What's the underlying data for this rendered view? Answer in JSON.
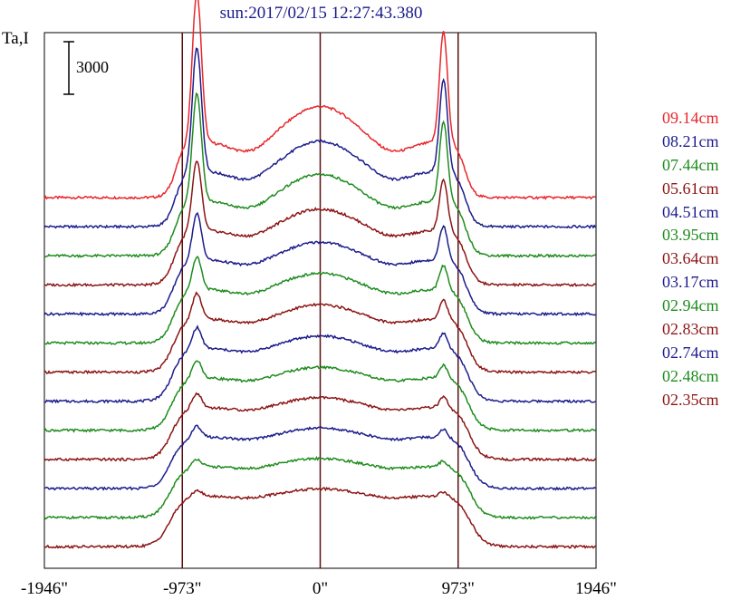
{
  "chart_data": {
    "type": "line",
    "title": "sun:2017/02/15 12:27:43.380",
    "ylabel": "Ta,I",
    "scale_bar_label": "3000",
    "x_ticks": [
      {
        "value": -1946,
        "label": "-1946\""
      },
      {
        "value": -973,
        "label": "-973\""
      },
      {
        "value": 0,
        "label": "0\""
      },
      {
        "value": 973,
        "label": "973\""
      },
      {
        "value": 1946,
        "label": "1946\""
      }
    ],
    "xlim": [
      -1946,
      1946
    ],
    "vertical_markers": [
      -973,
      0,
      973
    ],
    "series": [
      {
        "name": "09.14cm",
        "color": "#e8262b",
        "limb_peak": 9000,
        "center_bump": 2000
      },
      {
        "name": "08.21cm",
        "color": "#1c1c8c",
        "limb_peak": 7500,
        "center_bump": 1700
      },
      {
        "name": "07.44cm",
        "color": "#1e8c1e",
        "limb_peak": 6500,
        "center_bump": 1500
      },
      {
        "name": "05.61cm",
        "color": "#8c1414",
        "limb_peak": 4200,
        "center_bump": 1200
      },
      {
        "name": "04.51cm",
        "color": "#1c1c8c",
        "limb_peak": 2800,
        "center_bump": 1000
      },
      {
        "name": "03.95cm",
        "color": "#1e8c1e",
        "limb_peak": 2000,
        "center_bump": 900
      },
      {
        "name": "03.64cm",
        "color": "#8c1414",
        "limb_peak": 1600,
        "center_bump": 800
      },
      {
        "name": "03.17cm",
        "color": "#1c1c8c",
        "limb_peak": 1300,
        "center_bump": 700
      },
      {
        "name": "02.94cm",
        "color": "#1e8c1e",
        "limb_peak": 1100,
        "center_bump": 600
      },
      {
        "name": "02.83cm",
        "color": "#8c1414",
        "limb_peak": 900,
        "center_bump": 550
      },
      {
        "name": "02.74cm",
        "color": "#1c1c8c",
        "limb_peak": 700,
        "center_bump": 500
      },
      {
        "name": "02.48cm",
        "color": "#1e8c1e",
        "limb_peak": 500,
        "center_bump": 450
      },
      {
        "name": "02.35cm",
        "color": "#8c1414",
        "limb_peak": 400,
        "center_bump": 400
      }
    ],
    "legend_position": "right",
    "grid": false
  }
}
